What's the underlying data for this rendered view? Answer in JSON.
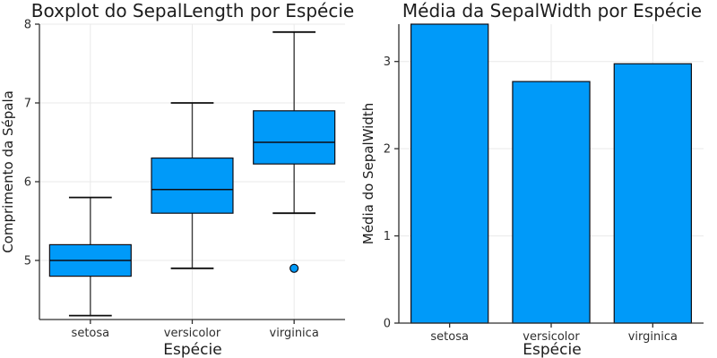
{
  "page": {
    "background": "#ffffff"
  },
  "colors": {
    "series_fill": "#009AF9",
    "outline": "#0d0d14",
    "median_line": "#0d0d14",
    "whisker_stem": "#3d3d3d",
    "whisker_cap": "#0d0d0d",
    "grid": "#e9e9e9",
    "axis": "#2f2f2f",
    "text": "#1c1c1c"
  },
  "chart_data": [
    {
      "type": "boxplot",
      "title": "Boxplot do SepalLength por Espécie",
      "xlabel": "Espécie",
      "ylabel": "Comprimento da Sépala",
      "categories": [
        "setosa",
        "versicolor",
        "virginica"
      ],
      "ylim": [
        4.25,
        8.0
      ],
      "yticks": [
        5,
        6,
        7,
        8
      ],
      "grid": true,
      "legend": "none",
      "series": [
        {
          "category": "setosa",
          "whisker_low": 4.3,
          "q1": 4.8,
          "median": 5.0,
          "q3": 5.2,
          "whisker_high": 5.8,
          "outliers": []
        },
        {
          "category": "versicolor",
          "whisker_low": 4.9,
          "q1": 5.6,
          "median": 5.9,
          "q3": 6.3,
          "whisker_high": 7.0,
          "outliers": []
        },
        {
          "category": "virginica",
          "whisker_low": 5.6,
          "q1": 6.225,
          "median": 6.5,
          "q3": 6.9,
          "whisker_high": 7.9,
          "outliers": [
            4.9
          ]
        }
      ]
    },
    {
      "type": "bar",
      "title": "Média da SepalWidth por Espécie",
      "xlabel": "Espécie",
      "ylabel": "Média do SepalWidth",
      "categories": [
        "setosa",
        "versicolor",
        "virginica"
      ],
      "values": [
        3.428,
        2.77,
        2.974
      ],
      "ylim": [
        0,
        3.428
      ],
      "yticks": [
        0,
        1,
        2,
        3
      ],
      "grid": true,
      "legend": "none"
    }
  ]
}
